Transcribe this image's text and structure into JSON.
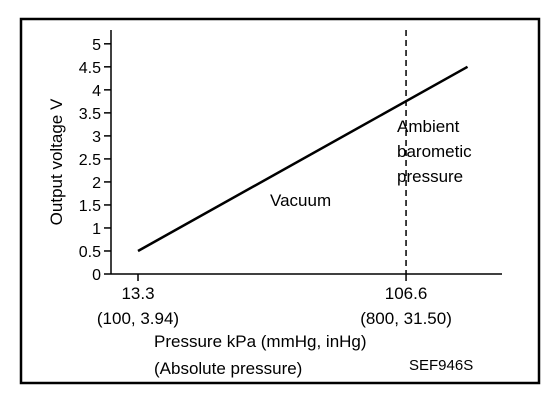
{
  "chart_data": {
    "type": "line",
    "ylabel": "Output voltage V",
    "xlabel_line1": "Pressure kPa (mmHg, inHg)",
    "xlabel_line2": "(Absolute pressure)",
    "figure_code": "SEF946S",
    "yticks": [
      "0",
      "0.5",
      "1",
      "1.5",
      "2",
      "2.5",
      "3",
      "3.5",
      "4",
      "4.5",
      "5"
    ],
    "ylim": [
      0,
      5.3
    ],
    "xlim": [
      3.9,
      140
    ],
    "xticks": [
      {
        "value": 13.3,
        "label": "13.3",
        "sublabel": "(100, 3.94)"
      },
      {
        "value": 106.6,
        "label": "106.6",
        "sublabel": "(800, 31.50)"
      }
    ],
    "series": [
      {
        "x": [
          13.3,
          128.0
        ],
        "y": [
          0.5,
          4.5
        ]
      }
    ],
    "reference_line": {
      "x": 106.6,
      "style": "dashed"
    },
    "annotations": {
      "vacuum": "Vacuum",
      "ambient": [
        "Ambient",
        "barometic",
        "pressure"
      ]
    },
    "grid": false
  },
  "colors": {
    "ink": "#000000",
    "background": "#ffffff"
  }
}
